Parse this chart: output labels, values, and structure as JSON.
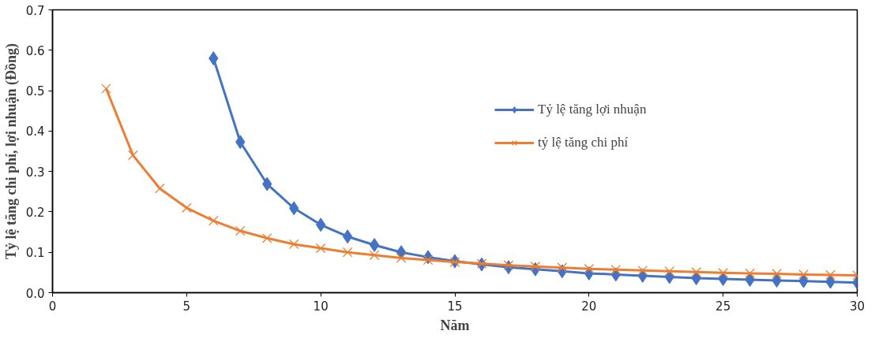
{
  "chart_data": {
    "type": "line",
    "xlabel": "Năm",
    "ylabel": "Tỷ lệ tăng chi phí, lợi nhuận (Đồng)",
    "xlim": [
      0,
      30
    ],
    "xticks": [
      0,
      5,
      10,
      15,
      20,
      25,
      30
    ],
    "ylim": [
      0,
      0.7
    ],
    "yticks": [
      {
        "value": 0,
        "label": "0.0"
      },
      0.1,
      0.2,
      0.3,
      0.4,
      0.5,
      0.6,
      0.7
    ],
    "grid": false,
    "legend": "top right",
    "series": [
      {
        "name": "Tỷ lệ tăng lợi nhuận",
        "color": "#4472c4",
        "marker": "diamond",
        "x": [
          6,
          7,
          8,
          9,
          10,
          11,
          12,
          13,
          14,
          15,
          16,
          17,
          18,
          19,
          20,
          21,
          22,
          23,
          24,
          25,
          26,
          27,
          28,
          29,
          30
        ],
        "values": [
          0.58,
          0.373,
          0.269,
          0.209,
          0.168,
          0.139,
          0.118,
          0.1,
          0.088,
          0.078,
          0.07,
          0.063,
          0.058,
          0.053,
          0.048,
          0.045,
          0.042,
          0.039,
          0.036,
          0.034,
          0.032,
          0.03,
          0.029,
          0.027,
          0.025
        ]
      },
      {
        "name": "tỷ lệ tăng chi phí",
        "color": "#ed7d31",
        "marker": "cross",
        "x": [
          2,
          3,
          4,
          5,
          6,
          7,
          8,
          9,
          10,
          11,
          12,
          13,
          14,
          15,
          16,
          17,
          18,
          19,
          20,
          21,
          22,
          23,
          24,
          25,
          26,
          27,
          28,
          29,
          30
        ],
        "values": [
          0.505,
          0.34,
          0.258,
          0.21,
          0.178,
          0.153,
          0.135,
          0.12,
          0.11,
          0.1,
          0.093,
          0.086,
          0.081,
          0.076,
          0.072,
          0.068,
          0.065,
          0.062,
          0.059,
          0.057,
          0.055,
          0.053,
          0.051,
          0.049,
          0.048,
          0.047,
          0.045,
          0.044,
          0.043
        ]
      }
    ]
  }
}
